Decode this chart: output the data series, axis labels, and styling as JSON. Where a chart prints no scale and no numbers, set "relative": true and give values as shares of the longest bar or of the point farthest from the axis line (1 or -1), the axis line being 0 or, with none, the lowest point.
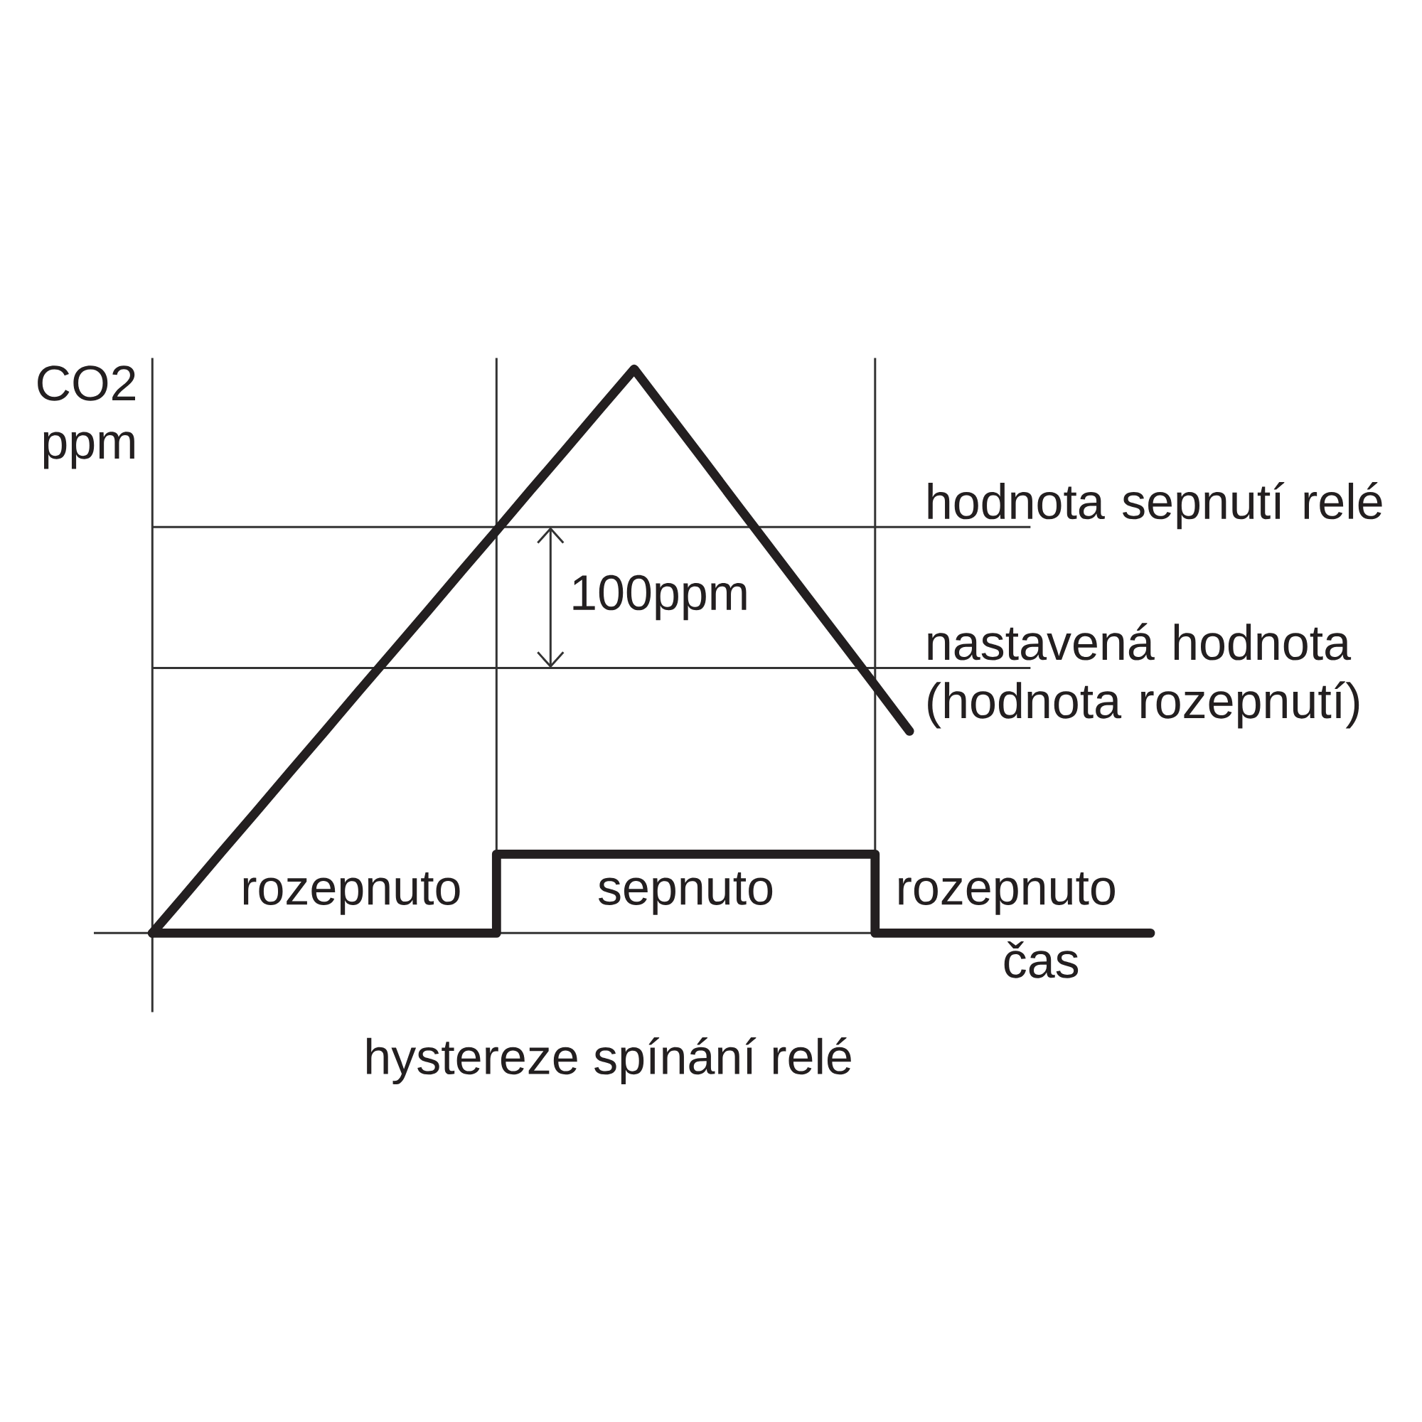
{
  "chart_data": {
    "type": "line",
    "title": "hystereze spínání relé",
    "xlabel": "čas",
    "ylabel": "CO2 ppm",
    "relative": true,
    "grid": "x",
    "categories": [
      null,
      null,
      null,
      null,
      null,
      null,
      null,
      null,
      null,
      null,
      null,
      null,
      null,
      null,
      null,
      null,
      null,
      null,
      null,
      null,
      null,
      null,
      null,
      null,
      null,
      null,
      null,
      null,
      null,
      null
    ],
    "series": [
      {
        "color": "#231f20",
        "values": [
          0,
          0.071,
          0.143,
          0.214,
          0.286,
          0.357,
          0.429,
          0.5,
          0.571,
          0.643,
          0.714,
          0.786,
          0.857,
          0.929,
          1,
          0.92,
          0.84,
          0.759,
          0.679,
          0.599,
          0.519,
          0.439,
          0.358,
          null,
          null,
          null,
          null,
          null,
          null,
          null
        ]
      },
      {
        "type": "step",
        "color": "#231f20",
        "values": [
          0,
          0,
          0,
          0,
          0,
          0,
          0,
          0,
          0,
          0,
          0.14,
          0.14,
          0.14,
          0.14,
          0.14,
          0.14,
          0.14,
          0.14,
          0.14,
          0.14,
          0.14,
          0,
          0,
          0,
          0,
          0,
          0,
          0,
          0,
          0
        ]
      }
    ],
    "ref_lines": [
      {
        "axis": "y",
        "value": 0.72,
        "label": "hodnota sepnutí relé",
        "color": "#333333"
      },
      {
        "axis": "y",
        "value": 0.47,
        "label": "nastavená hodnota (hodnota rozepnutí)",
        "color": "#333333"
      }
    ],
    "annotations": [
      "100ppm",
      "rozepnuto",
      "sepnuto",
      "rozepnuto"
    ]
  }
}
